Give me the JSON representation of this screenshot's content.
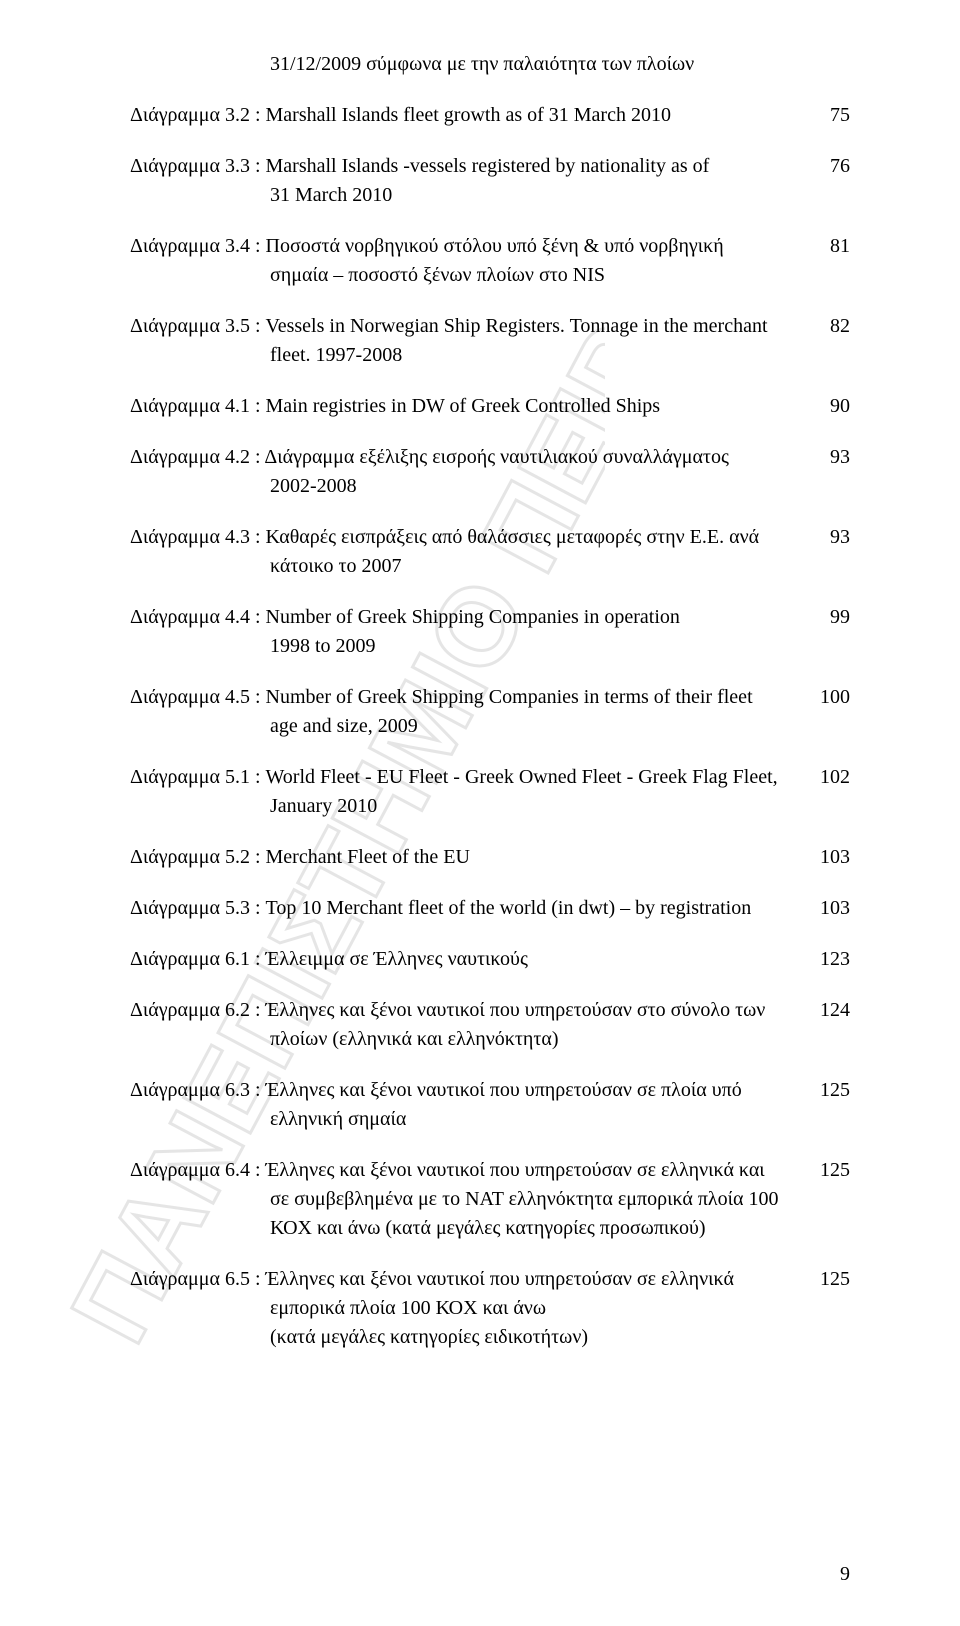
{
  "watermark_text": "ΠΑΝΕΠΙΣΤΗΜΙΟ ΠΕΙΡΑΙΑ",
  "entries": [
    {
      "label": "",
      "text_line1": "31/12/2009 σύμφωνα με την παλαιότητα των πλοίων",
      "text_line2": "",
      "page": ""
    },
    {
      "label": "Διάγραμμα 3.2",
      "text_line1": ": Marshall Islands fleet growth as of 31 March 2010",
      "text_line2": "",
      "page": "75"
    },
    {
      "label": "Διάγραμμα 3.3",
      "text_line1": ": Marshall Islands -vessels registered by nationality as of",
      "text_line2": "31 March 2010",
      "page": "76"
    },
    {
      "label": "Διάγραμμα 3.4",
      "text_line1": ": Ποσοστά νορβηγικού στόλου υπό ξένη & υπό νορβηγική",
      "text_line2": "σημαία – ποσοστό ξένων πλοίων στο NIS",
      "page": "81"
    },
    {
      "label": "Διάγραμμα 3.5",
      "text_line1": ": Vessels in Norwegian Ship Registers. Tonnage in the merchant",
      "text_line2": "fleet. 1997-2008",
      "page": "82"
    },
    {
      "label": "Διάγραμμα 4.1",
      "text_line1": ": Main registries in DW of Greek Controlled Ships",
      "text_line2": "",
      "page": "90"
    },
    {
      "label": "Διάγραμμα 4.2",
      "text_line1": ": Διάγραμμα εξέλιξης εισροής ναυτιλιακού συναλλάγματος",
      "text_line2": "2002-2008",
      "page": "93"
    },
    {
      "label": "Διάγραμμα 4.3",
      "text_line1": ": Καθαρές εισπράξεις από θαλάσσιες μεταφορές στην Ε.Ε. ανά",
      "text_line2": "κάτοικο το 2007",
      "page": "93"
    },
    {
      "label": "Διάγραμμα 4.4",
      "text_line1": ": Number of Greek Shipping Companies in operation",
      "text_line2": "1998 to 2009",
      "page": "99"
    },
    {
      "label": "Διάγραμμα 4.5",
      "text_line1": ": Number of Greek Shipping Companies in terms of their fleet",
      "text_line2": "age and size, 2009",
      "page": "100"
    },
    {
      "label": "Διάγραμμα 5.1",
      "text_line1": ": World Fleet - EU Fleet - Greek Owned Fleet - Greek Flag Fleet,",
      "text_line2": "January 2010",
      "page": "102"
    },
    {
      "label": "Διάγραμμα 5.2",
      "text_line1": ": Merchant Fleet of the EU",
      "text_line2": "",
      "page": "103"
    },
    {
      "label": "Διάγραμμα 5.3",
      "text_line1": ": Top 10 Merchant fleet of the world (in dwt) – by registration",
      "text_line2": "",
      "page": "103"
    },
    {
      "label": "Διάγραμμα 6.1",
      "text_line1": ": Έλλειμμα σε Έλληνες ναυτικούς",
      "text_line2": "",
      "page": "123"
    },
    {
      "label": "Διάγραμμα 6.2",
      "text_line1": ": Έλληνες και ξένοι ναυτικοί που υπηρετούσαν στο σύνολο των",
      "text_line2": "πλοίων (ελληνικά και ελληνόκτητα)",
      "page": "124"
    },
    {
      "label": "Διάγραμμα 6.3",
      "text_line1": ": Έλληνες και ξένοι ναυτικοί που υπηρετούσαν σε πλοία υπό",
      "text_line2": "ελληνική σημαία",
      "page": "125"
    },
    {
      "label": "Διάγραμμα 6.4",
      "text_line1": ": Έλληνες και ξένοι ναυτικοί που υπηρετούσαν σε ελληνικά και",
      "text_line2": "σε συμβεβλημένα με το ΝΑΤ ελληνόκτητα εμπορικά πλοία 100",
      "text_line3": "ΚΟΧ και άνω (κατά μεγάλες κατηγορίες προσωπικού)",
      "page": "125"
    },
    {
      "label": "Διάγραμμα 6.5",
      "text_line1": ": Έλληνες και ξένοι ναυτικοί που υπηρετούσαν σε ελληνικά",
      "text_line2": "εμπορικά πλοία 100 ΚΟΧ και άνω",
      "text_line3": "(κατά μεγάλες κατηγορίες ειδικοτήτων)",
      "page": "125"
    }
  ],
  "page_number": "9",
  "style": {
    "font_family": "Times New Roman",
    "font_size_pt": 15,
    "text_color": "#000000",
    "background_color": "#ffffff",
    "watermark_stroke": "#b6b6b6",
    "watermark_opacity": 0.35
  }
}
